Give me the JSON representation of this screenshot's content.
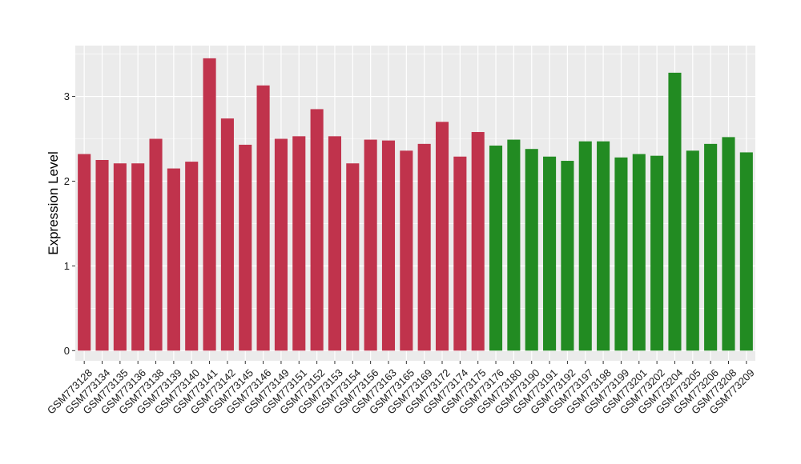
{
  "chart_data": {
    "type": "bar",
    "title": "",
    "xlabel": "",
    "ylabel": "Expression Level",
    "ylim": [
      -0.12,
      3.6
    ],
    "yticks": [
      0,
      1,
      2,
      3
    ],
    "grid": true,
    "legend": "none",
    "categories": [
      "GSM773128",
      "GSM773134",
      "GSM773135",
      "GSM773136",
      "GSM773138",
      "GSM773139",
      "GSM773140",
      "GSM773141",
      "GSM773142",
      "GSM773145",
      "GSM773146",
      "GSM773149",
      "GSM773151",
      "GSM773152",
      "GSM773153",
      "GSM773154",
      "GSM773156",
      "GSM773163",
      "GSM773165",
      "GSM773169",
      "GSM773172",
      "GSM773174",
      "GSM773175",
      "GSM773176",
      "GSM773180",
      "GSM773190",
      "GSM773191",
      "GSM773192",
      "GSM773197",
      "GSM773198",
      "GSM773199",
      "GSM773201",
      "GSM773202",
      "GSM773204",
      "GSM773205",
      "GSM773206",
      "GSM773208",
      "GSM773209"
    ],
    "values": [
      2.32,
      2.25,
      2.21,
      2.21,
      2.5,
      2.15,
      2.23,
      3.45,
      2.74,
      2.43,
      3.13,
      2.5,
      2.53,
      2.85,
      2.53,
      2.21,
      2.49,
      2.48,
      2.36,
      2.44,
      2.7,
      2.29,
      2.58,
      2.42,
      2.49,
      2.38,
      2.29,
      2.24,
      2.47,
      2.47,
      2.28,
      2.32,
      2.3,
      3.28,
      2.36,
      2.44,
      2.52,
      2.34
    ],
    "groups": [
      "red",
      "red",
      "red",
      "red",
      "red",
      "red",
      "red",
      "red",
      "red",
      "red",
      "red",
      "red",
      "red",
      "red",
      "red",
      "red",
      "red",
      "red",
      "red",
      "red",
      "red",
      "red",
      "red",
      "green",
      "green",
      "green",
      "green",
      "green",
      "green",
      "green",
      "green",
      "green",
      "green",
      "green",
      "green",
      "green",
      "green",
      "green"
    ],
    "colors": {
      "red": "#c0334c",
      "green": "#228b22",
      "panel": "#ebebeb",
      "grid": "#ffffff"
    }
  }
}
